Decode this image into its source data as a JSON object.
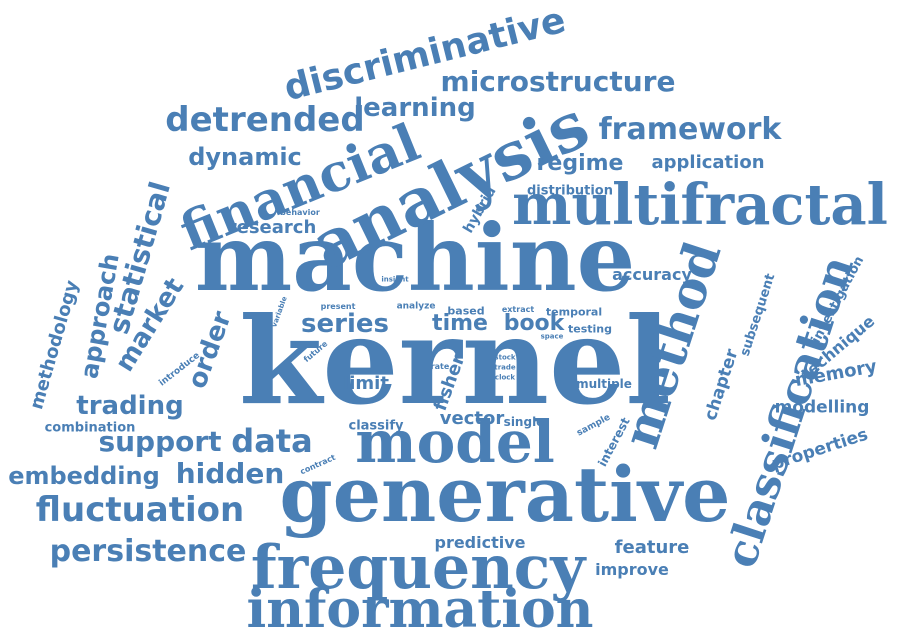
{
  "theme": {
    "word_color": "#4a7fb5",
    "background": "#ffffff"
  },
  "cloud": {
    "words": [
      "kernel",
      "machine",
      "generative",
      "model",
      "analysis",
      "multifractal",
      "frequency",
      "information",
      "financial",
      "classification",
      "method",
      "discriminative",
      "microstructure",
      "detrended",
      "framework",
      "learning",
      "fluctuation",
      "persistence",
      "support",
      "trading",
      "data",
      "hidden",
      "embedding",
      "series",
      "time",
      "book",
      "dynamic",
      "regime",
      "application",
      "statistical",
      "approach",
      "market",
      "order",
      "methodology",
      "research",
      "hybrid",
      "distribution",
      "chapter",
      "subsequent",
      "investigation",
      "technique",
      "memory",
      "modelling",
      "properties",
      "accuracy",
      "limit",
      "fisher",
      "vector",
      "classify",
      "single",
      "predictive",
      "feature",
      "improve",
      "combination",
      "interest",
      "testing",
      "temporal",
      "extract",
      "based",
      "analyze",
      "present",
      "variable",
      "future",
      "introduce",
      "insight",
      "behavior",
      "rate",
      "stock",
      "trade",
      "clock",
      "space",
      "multiple",
      "sample",
      "contract"
    ]
  }
}
